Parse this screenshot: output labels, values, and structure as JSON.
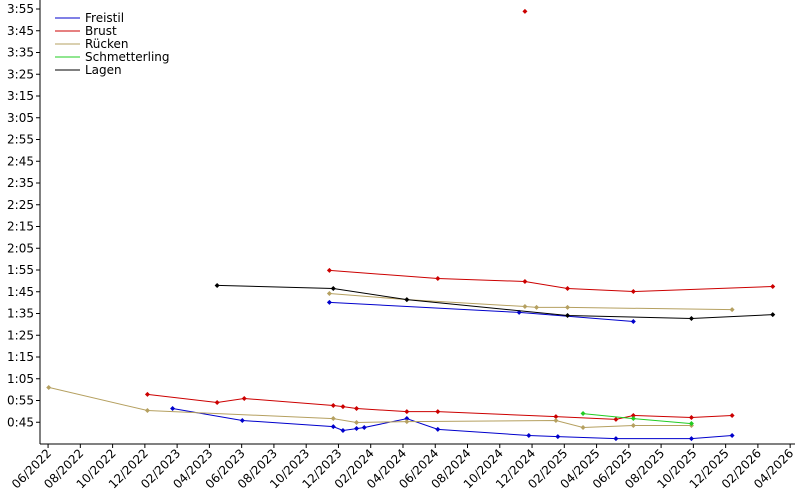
{
  "chart_data": {
    "type": "line",
    "xlim": [
      2022.375,
      2026.275
    ],
    "ylim": [
      35,
      235
    ],
    "xticks": [
      {
        "value": 2022.4167,
        "label": "06/2022"
      },
      {
        "value": 2022.5833,
        "label": "08/2022"
      },
      {
        "value": 2022.75,
        "label": "10/2022"
      },
      {
        "value": 2022.9167,
        "label": "12/2022"
      },
      {
        "value": 2023.0833,
        "label": "02/2023"
      },
      {
        "value": 2023.25,
        "label": "04/2023"
      },
      {
        "value": 2023.4167,
        "label": "06/2023"
      },
      {
        "value": 2023.5833,
        "label": "08/2023"
      },
      {
        "value": 2023.75,
        "label": "10/2023"
      },
      {
        "value": 2023.9167,
        "label": "12/2023"
      },
      {
        "value": 2024.0833,
        "label": "02/2024"
      },
      {
        "value": 2024.25,
        "label": "04/2024"
      },
      {
        "value": 2024.4167,
        "label": "06/2024"
      },
      {
        "value": 2024.5833,
        "label": "08/2024"
      },
      {
        "value": 2024.75,
        "label": "10/2024"
      },
      {
        "value": 2024.9167,
        "label": "12/2024"
      },
      {
        "value": 2025.0833,
        "label": "02/2025"
      },
      {
        "value": 2025.25,
        "label": "04/2025"
      },
      {
        "value": 2025.4167,
        "label": "06/2025"
      },
      {
        "value": 2025.5833,
        "label": "08/2025"
      },
      {
        "value": 2025.75,
        "label": "10/2025"
      },
      {
        "value": 2025.9167,
        "label": "12/2025"
      },
      {
        "value": 2026.0833,
        "label": "02/2026"
      },
      {
        "value": 2026.25,
        "label": "04/2026"
      }
    ],
    "yticks": [
      {
        "value": 45,
        "label": "0:45"
      },
      {
        "value": 55,
        "label": "0:55"
      },
      {
        "value": 65,
        "label": "1:05"
      },
      {
        "value": 75,
        "label": "1:15"
      },
      {
        "value": 85,
        "label": "1:25"
      },
      {
        "value": 95,
        "label": "1:35"
      },
      {
        "value": 105,
        "label": "1:45"
      },
      {
        "value": 115,
        "label": "1:55"
      },
      {
        "value": 125,
        "label": "2:05"
      },
      {
        "value": 135,
        "label": "2:15"
      },
      {
        "value": 145,
        "label": "2:25"
      },
      {
        "value": 155,
        "label": "2:35"
      },
      {
        "value": 165,
        "label": "2:45"
      },
      {
        "value": 175,
        "label": "2:55"
      },
      {
        "value": 185,
        "label": "3:05"
      },
      {
        "value": 195,
        "label": "3:15"
      },
      {
        "value": 205,
        "label": "3:25"
      },
      {
        "value": 215,
        "label": "3:35"
      },
      {
        "value": 225,
        "label": "3:45"
      },
      {
        "value": 235,
        "label": "3:55"
      }
    ],
    "legend": "upper left",
    "series": [
      {
        "name": "Freistil",
        "color": "#0000cc",
        "x": [
          2023.06,
          2023.42,
          2023.89,
          2023.94,
          2024.01,
          2024.05,
          2024.27,
          2024.43,
          2024.9,
          2025.05,
          2025.35,
          2025.74,
          2025.95,
          null,
          2023.87,
          2024.85,
          2025.44
        ],
        "values": [
          51.3,
          45.8,
          43.0,
          41.2,
          42.1,
          42.6,
          46.7,
          41.7,
          38.9,
          38.4,
          37.5,
          37.5,
          38.9,
          null,
          100.1,
          95.5,
          91.3
        ]
      },
      {
        "name": "Brust",
        "color": "#cc0000",
        "x": [
          2022.93,
          2023.29,
          2023.43,
          2023.89,
          2023.94,
          2024.01,
          2024.27,
          2024.43,
          2025.04,
          2025.35,
          2025.44,
          2025.74,
          2025.95,
          null,
          2023.87,
          2024.43,
          2024.88,
          2025.1,
          2025.44,
          2026.16,
          null,
          2024.88
        ],
        "values": [
          57.8,
          54.1,
          55.9,
          52.7,
          52.2,
          51.3,
          49.9,
          49.9,
          47.6,
          46.3,
          48.1,
          47.2,
          48.1,
          null,
          114.8,
          111.1,
          109.7,
          106.5,
          105.1,
          107.4,
          null,
          233.9
        ]
      },
      {
        "name": "Rücken",
        "color": "#b5a060",
        "x": [
          2022.42,
          2022.93,
          2023.89,
          2024.01,
          2024.27,
          2025.04,
          2025.18,
          2025.44,
          2025.74,
          null,
          2023.87,
          2024.27,
          2024.88,
          2024.94,
          2025.1,
          2025.95
        ],
        "values": [
          61.0,
          50.4,
          46.7,
          44.9,
          45.3,
          45.8,
          42.6,
          43.5,
          43.5,
          null,
          104.2,
          101.4,
          98.2,
          97.8,
          97.8,
          96.8
        ]
      },
      {
        "name": "Schmetterling",
        "color": "#22cc22",
        "x": [
          2025.18,
          2025.44,
          2025.74
        ],
        "values": [
          49.0,
          46.7,
          44.4
        ]
      },
      {
        "name": "Lagen",
        "color": "#000000",
        "x": [
          2023.29,
          2023.89,
          2024.27,
          2025.1,
          2025.74,
          2026.16
        ],
        "values": [
          107.9,
          106.5,
          101.4,
          94.1,
          92.7,
          94.5
        ]
      }
    ]
  }
}
